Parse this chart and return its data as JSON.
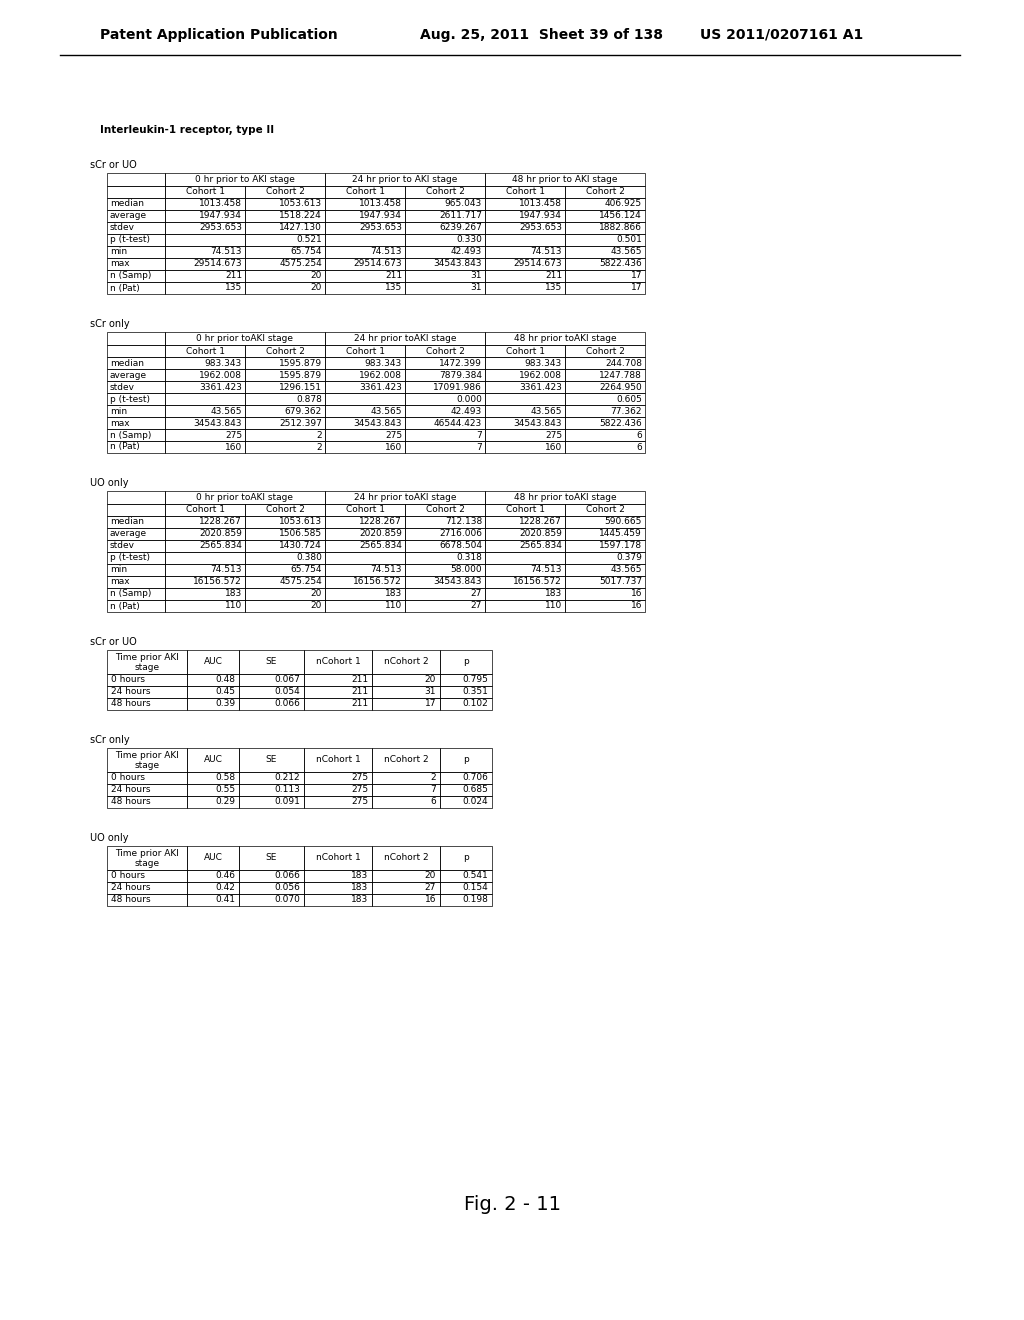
{
  "header_text_left": "Patent Application Publication",
  "header_text_mid": "Aug. 25, 2011  Sheet 39 of 138",
  "header_text_right": "US 2011/0207161 A1",
  "title": "Interleukin-1 receptor, type II",
  "figure_label": "Fig. 2 - 11",
  "sections": [
    {
      "label": "sCr or UO",
      "col_groups": [
        "0 hr prior to AKI stage",
        "24 hr prior to AKI stage",
        "48 hr prior to AKI stage"
      ],
      "col_subheads": [
        "Cohort 1",
        "Cohort 2",
        "Cohort 1",
        "Cohort 2",
        "Cohort 1",
        "Cohort 2"
      ],
      "rows": [
        [
          "median",
          "1013.458",
          "1053.613",
          "1013.458",
          "965.043",
          "1013.458",
          "406.925"
        ],
        [
          "average",
          "1947.934",
          "1518.224",
          "1947.934",
          "2611.717",
          "1947.934",
          "1456.124"
        ],
        [
          "stdev",
          "2953.653",
          "1427.130",
          "2953.653",
          "6239.267",
          "2953.653",
          "1882.866"
        ],
        [
          "p (t-test)",
          "",
          "0.521",
          "",
          "0.330",
          "",
          "0.501"
        ],
        [
          "min",
          "74.513",
          "65.754",
          "74.513",
          "42.493",
          "74.513",
          "43.565"
        ],
        [
          "max",
          "29514.673",
          "4575.254",
          "29514.673",
          "34543.843",
          "29514.673",
          "5822.436"
        ],
        [
          "n (Samp)",
          "211",
          "20",
          "211",
          "31",
          "211",
          "17"
        ],
        [
          "n (Pat)",
          "135",
          "20",
          "135",
          "31",
          "135",
          "17"
        ]
      ]
    },
    {
      "label": "sCr only",
      "col_groups": [
        "0 hr prior toAKI stage",
        "24 hr prior toAKI stage",
        "48 hr prior toAKI stage"
      ],
      "col_subheads": [
        "Cohort 1",
        "Cohort 2",
        "Cohort 1",
        "Cohort 2",
        "Cohort 1",
        "Cohort 2"
      ],
      "rows": [
        [
          "median",
          "983.343",
          "1595.879",
          "983.343",
          "1472.399",
          "983.343",
          "244.708"
        ],
        [
          "average",
          "1962.008",
          "1595.879",
          "1962.008",
          "7879.384",
          "1962.008",
          "1247.788"
        ],
        [
          "stdev",
          "3361.423",
          "1296.151",
          "3361.423",
          "17091.986",
          "3361.423",
          "2264.950"
        ],
        [
          "p (t-test)",
          "",
          "0.878",
          "",
          "0.000",
          "",
          "0.605"
        ],
        [
          "min",
          "43.565",
          "679.362",
          "43.565",
          "42.493",
          "43.565",
          "77.362"
        ],
        [
          "max",
          "34543.843",
          "2512.397",
          "34543.843",
          "46544.423",
          "34543.843",
          "5822.436"
        ],
        [
          "n (Samp)",
          "275",
          "2",
          "275",
          "7",
          "275",
          "6"
        ],
        [
          "n (Pat)",
          "160",
          "2",
          "160",
          "7",
          "160",
          "6"
        ]
      ]
    },
    {
      "label": "UO only",
      "col_groups": [
        "0 hr prior toAKI stage",
        "24 hr prior toAKI stage",
        "48 hr prior toAKI stage"
      ],
      "col_subheads": [
        "Cohort 1",
        "Cohort 2",
        "Cohort 1",
        "Cohort 2",
        "Cohort 1",
        "Cohort 2"
      ],
      "rows": [
        [
          "median",
          "1228.267",
          "1053.613",
          "1228.267",
          "712.138",
          "1228.267",
          "590.665"
        ],
        [
          "average",
          "2020.859",
          "1506.585",
          "2020.859",
          "2716.006",
          "2020.859",
          "1445.459"
        ],
        [
          "stdev",
          "2565.834",
          "1430.724",
          "2565.834",
          "6678.504",
          "2565.834",
          "1597.178"
        ],
        [
          "p (t-test)",
          "",
          "0.380",
          "",
          "0.318",
          "",
          "0.379"
        ],
        [
          "min",
          "74.513",
          "65.754",
          "74.513",
          "58.000",
          "74.513",
          "43.565"
        ],
        [
          "max",
          "16156.572",
          "4575.254",
          "16156.572",
          "34543.843",
          "16156.572",
          "5017.737"
        ],
        [
          "n (Samp)",
          "183",
          "20",
          "183",
          "27",
          "183",
          "16"
        ],
        [
          "n (Pat)",
          "110",
          "20",
          "110",
          "27",
          "110",
          "16"
        ]
      ]
    }
  ],
  "auc_sections": [
    {
      "label": "sCr or UO",
      "col_heads": [
        "Time prior AKI\nstage",
        "AUC",
        "SE",
        "nCohort 1",
        "nCohort 2",
        "p"
      ],
      "rows": [
        [
          "0 hours",
          "0.48",
          "0.067",
          "211",
          "20",
          "0.795"
        ],
        [
          "24 hours",
          "0.45",
          "0.054",
          "211",
          "31",
          "0.351"
        ],
        [
          "48 hours",
          "0.39",
          "0.066",
          "211",
          "17",
          "0.102"
        ]
      ]
    },
    {
      "label": "sCr only",
      "col_heads": [
        "Time prior AKI\nstage",
        "AUC",
        "SE",
        "nCohort 1",
        "nCohort 2",
        "p"
      ],
      "rows": [
        [
          "0 hours",
          "0.58",
          "0.212",
          "275",
          "2",
          "0.706"
        ],
        [
          "24 hours",
          "0.55",
          "0.113",
          "275",
          "7",
          "0.685"
        ],
        [
          "48 hours",
          "0.29",
          "0.091",
          "275",
          "6",
          "0.024"
        ]
      ]
    },
    {
      "label": "UO only",
      "col_heads": [
        "Time prior AKI\nstage",
        "AUC",
        "SE",
        "nCohort 1",
        "nCohort 2",
        "p"
      ],
      "rows": [
        [
          "0 hours",
          "0.46",
          "0.066",
          "183",
          "20",
          "0.541"
        ],
        [
          "24 hours",
          "0.42",
          "0.056",
          "183",
          "27",
          "0.154"
        ],
        [
          "48 hours",
          "0.41",
          "0.070",
          "183",
          "16",
          "0.198"
        ]
      ]
    }
  ]
}
